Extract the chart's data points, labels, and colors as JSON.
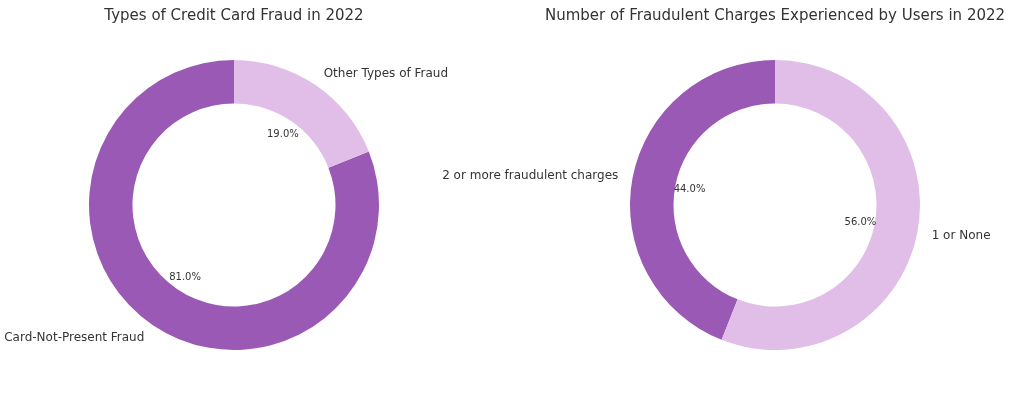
{
  "chart_data": [
    {
      "type": "donut",
      "title": "Types of Credit Card Fraud in 2022",
      "categories": [
        "Card-Not-Present Fraud",
        "Other Types of Fraud"
      ],
      "values": [
        81,
        19
      ],
      "value_labels": [
        "81.0%",
        "19.0%"
      ],
      "colors": [
        "#9b59b6",
        "#e1bee7"
      ]
    },
    {
      "type": "donut",
      "title": "Number of Fraudulent Charges Experienced by Users in 2022",
      "categories": [
        "2 or more fraudulent charges",
        "1 or None"
      ],
      "values": [
        44,
        56
      ],
      "value_labels": [
        "44.0%",
        "56.0%"
      ],
      "colors": [
        "#9b59b6",
        "#e1bee7"
      ]
    }
  ]
}
